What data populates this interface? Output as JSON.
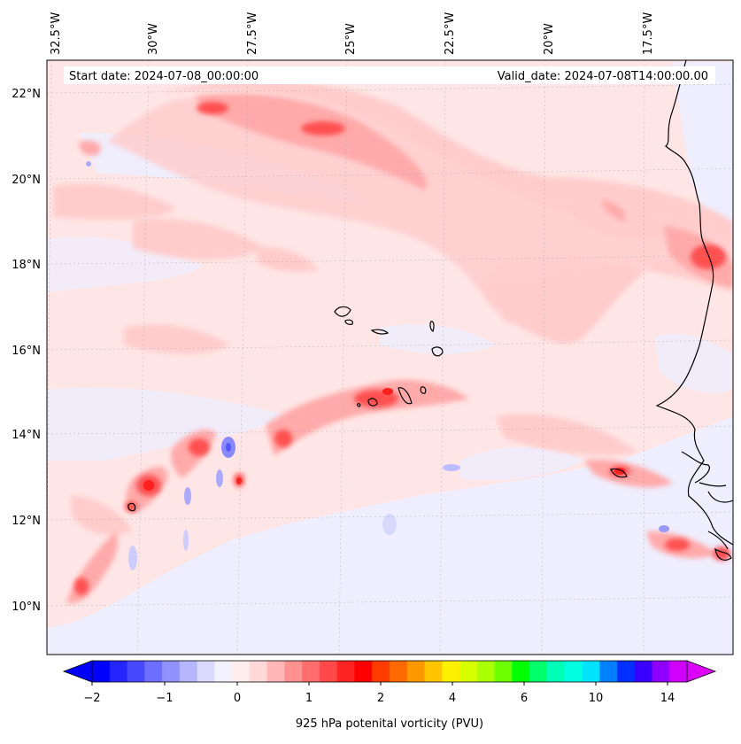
{
  "header": {
    "start_date": "Start date: 2024-07-08_00:00:00",
    "valid_date": "Valid_date: 2024-07-08T14:00:00.00"
  },
  "axes": {
    "lon_labels": [
      "32.5°W",
      "30°W",
      "27.5°W",
      "25°W",
      "22.5°W",
      "20°W",
      "17.5°W"
    ],
    "lat_labels": [
      "22°N",
      "20°N",
      "18°N",
      "16°N",
      "14°N",
      "12°N",
      "10°N"
    ]
  },
  "colorbar": {
    "tick_labels": [
      "−2",
      "−1",
      "0",
      "1",
      "2",
      "4",
      "6",
      "10",
      "14"
    ],
    "label": "925 hPa potenital vorticity (PVU)",
    "colors": [
      "#0000ff",
      "#2424ff",
      "#4848ff",
      "#6d6dff",
      "#9191ff",
      "#b6b6ff",
      "#dadaff",
      "#f2f2ff",
      "#ffecec",
      "#ffd8d8",
      "#ffb6b6",
      "#ff9191",
      "#ff6d6d",
      "#ff4848",
      "#ff2424",
      "#ff0000",
      "#ff3c00",
      "#ff6a00",
      "#ff9800",
      "#ffc600",
      "#fff000",
      "#d8ff00",
      "#aaff00",
      "#6cff00",
      "#00ff00",
      "#00ff6c",
      "#00ffb6",
      "#00ffe0",
      "#00e4ff",
      "#0080ff",
      "#0030ff",
      "#3a00ff",
      "#9000ff",
      "#d000ff"
    ]
  },
  "palette": {
    "light_pink": "#ffe6e6",
    "pink": "#ffcccc",
    "mid_pink": "#ffaaaa",
    "red": "#ff5050",
    "dark_red": "#ff2020",
    "light_blue": "#eeeeff",
    "blue": "#aaaaff",
    "deep_blue": "#5555ff",
    "coast": "#000000"
  }
}
